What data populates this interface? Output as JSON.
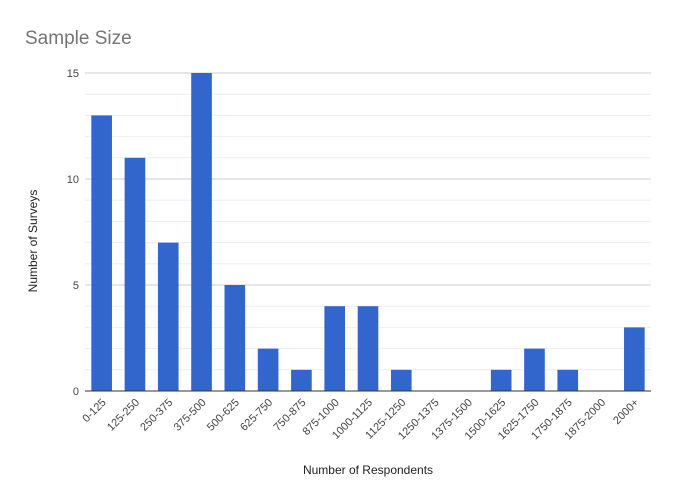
{
  "chart_data": {
    "type": "bar",
    "title": "Sample Size",
    "xlabel": "Number of Respondents",
    "ylabel": "Number of Surveys",
    "categories": [
      "0-125",
      "125-250",
      "250-375",
      "375-500",
      "500-625",
      "625-750",
      "750-875",
      "875-1000",
      "1000-1125",
      "1125-1250",
      "1250-1375",
      "1375-1500",
      "1500-1625",
      "1625-1750",
      "1750-1875",
      "1875-2000",
      "2000+"
    ],
    "values": [
      13,
      11,
      7,
      15,
      5,
      2,
      1,
      4,
      4,
      1,
      0,
      0,
      1,
      2,
      1,
      0,
      3
    ],
    "ylim": [
      0,
      15
    ],
    "yticks": [
      "0",
      "5",
      "10",
      "15"
    ],
    "grid": true,
    "legend": "none",
    "bar_color": "#3366cc"
  }
}
